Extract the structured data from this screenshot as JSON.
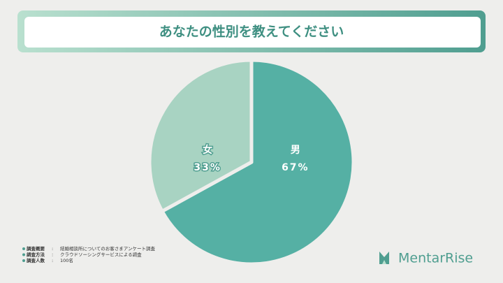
{
  "chart_data": {
    "type": "pie",
    "title": "あなたの性別を教えてください",
    "categories": [
      "男",
      "女"
    ],
    "values": [
      67,
      33
    ],
    "value_labels": [
      "67%",
      "33%"
    ],
    "colors": [
      "#55b0a4",
      "#a8d3c2"
    ]
  },
  "notes": {
    "separator": ":",
    "rows": [
      {
        "label": "調査概要",
        "text": "結婚相談所についてのお客さまアンケート調査"
      },
      {
        "label": "調査方法",
        "text": "クラウドソーシングサービスによる調査"
      },
      {
        "label": "調査人数",
        "text": "100名"
      }
    ]
  },
  "logo": "MentarRise"
}
